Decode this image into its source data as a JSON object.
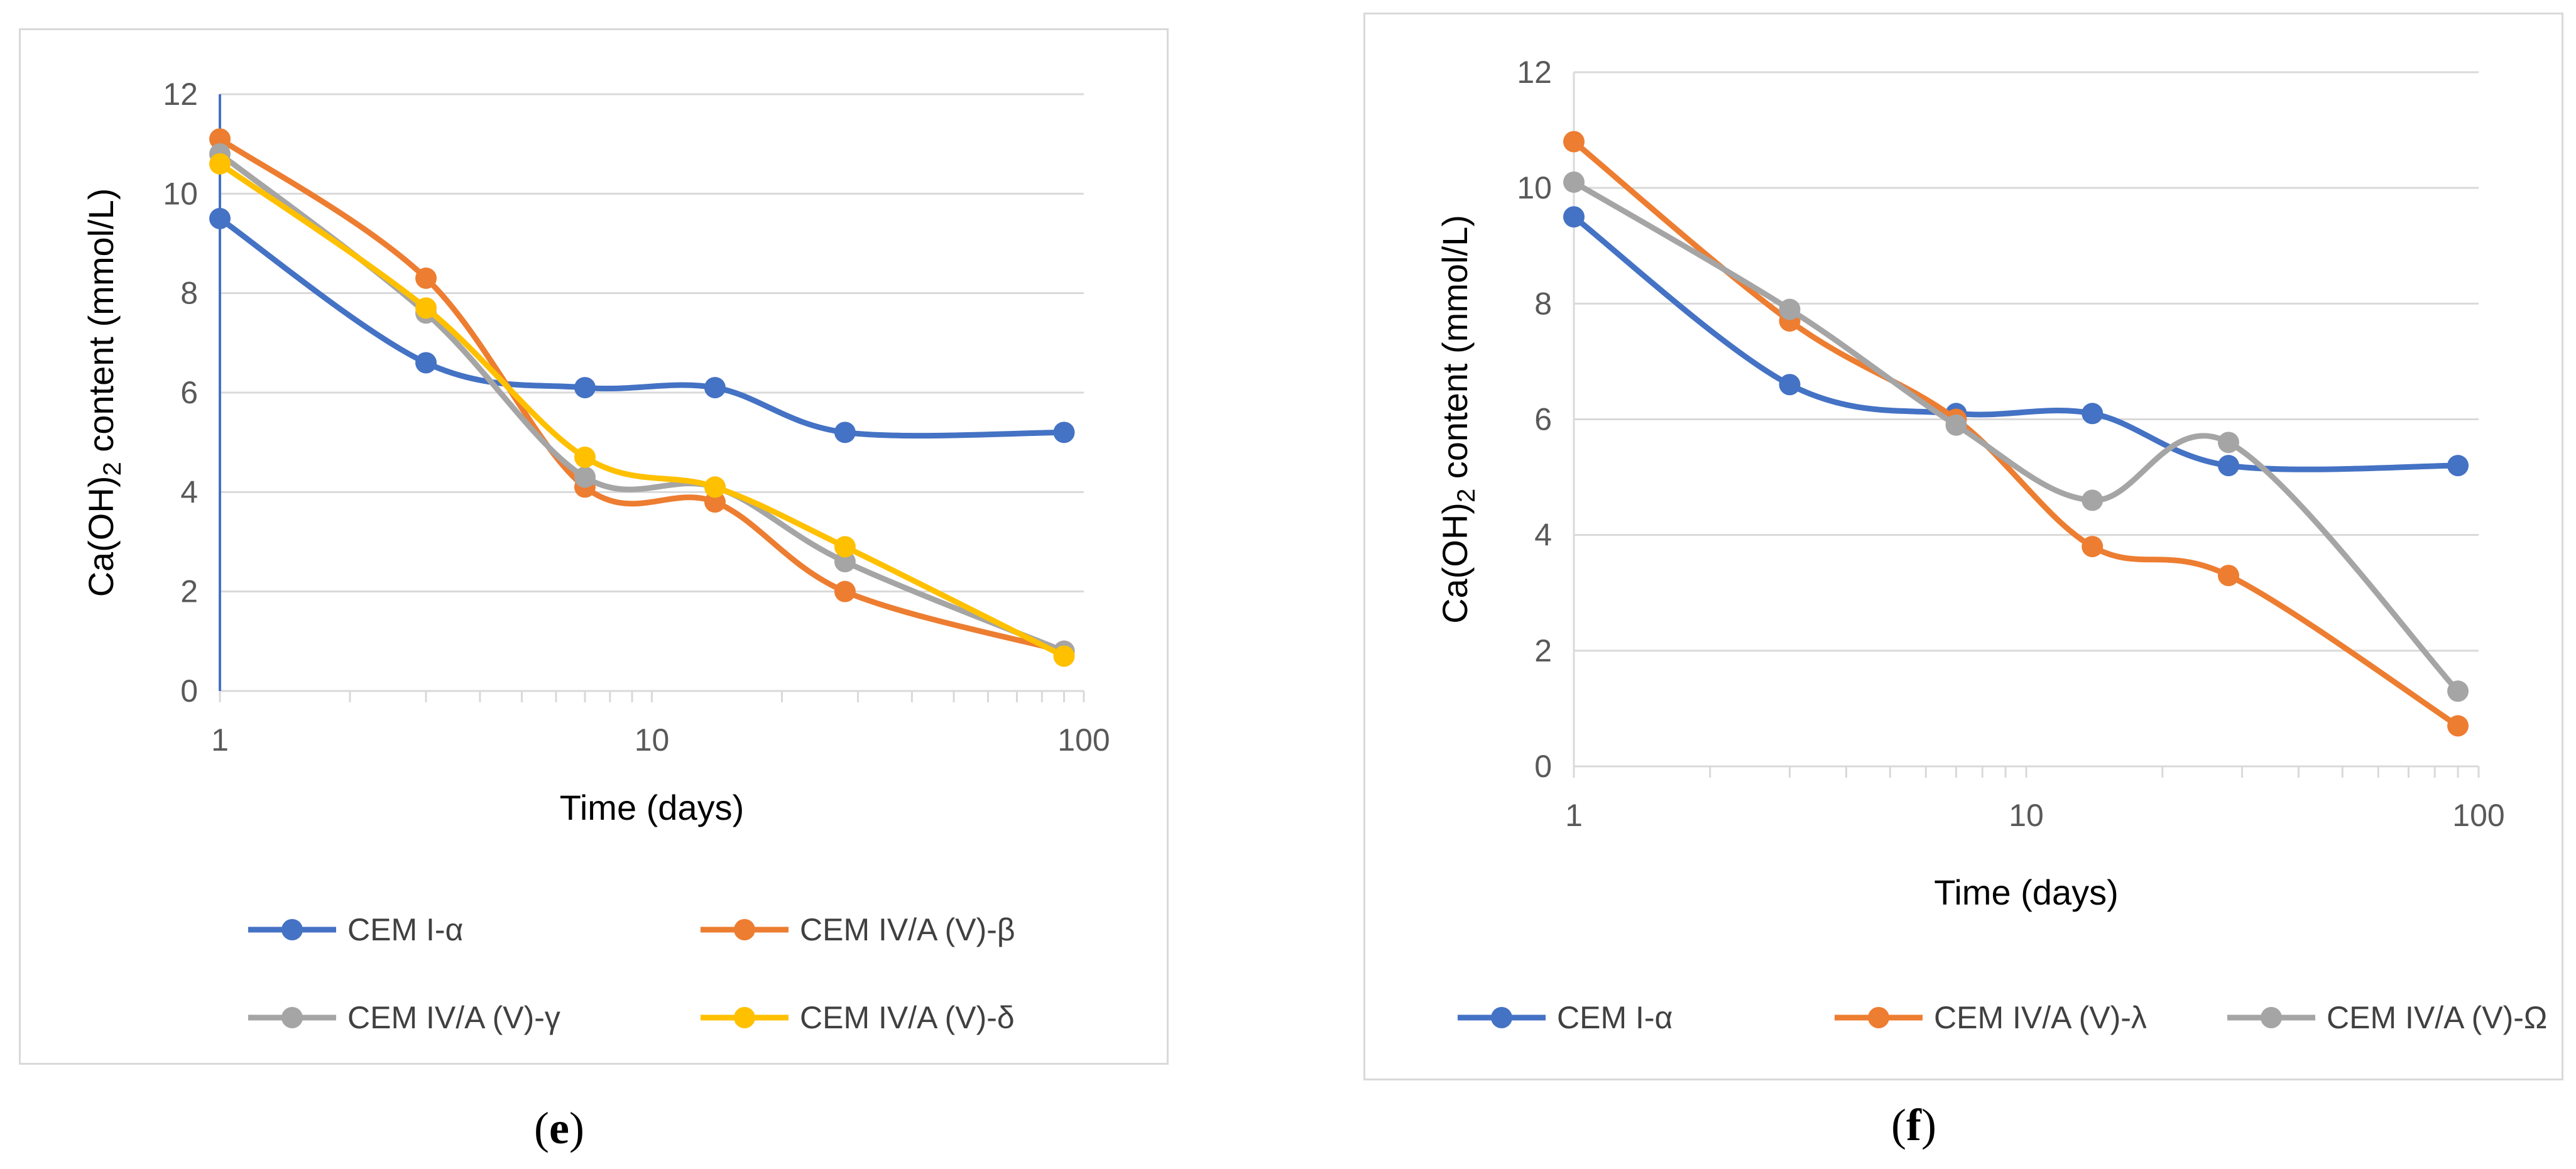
{
  "chart_data": [
    {
      "type": "line",
      "panel": "(e)",
      "xscale": "log",
      "xlim": [
        1,
        100
      ],
      "ylim": [
        0,
        12
      ],
      "xticks": [
        "1",
        "10",
        "100"
      ],
      "yticks": [
        "0",
        "2",
        "4",
        "6",
        "8",
        "10",
        "12"
      ],
      "xlabel": "Time (days)",
      "ylabel": "Ca(OH)2 content (mmol/L)",
      "legend": "bottom",
      "series": [
        {
          "name": "CEM I-α",
          "color": "#4472C4",
          "x": [
            1,
            3,
            7,
            14,
            28,
            90
          ],
          "y": [
            9.5,
            6.6,
            6.1,
            6.1,
            5.2,
            5.2
          ]
        },
        {
          "name": "CEM IV/A (V)-β",
          "color": "#ED7D31",
          "x": [
            1,
            3,
            7,
            14,
            28,
            90
          ],
          "y": [
            11.1,
            8.3,
            4.1,
            3.8,
            2.0,
            0.8
          ]
        },
        {
          "name": "CEM IV/A (V)-γ",
          "color": "#A5A5A5",
          "x": [
            1,
            3,
            7,
            14,
            28,
            90
          ],
          "y": [
            10.8,
            7.6,
            4.3,
            4.1,
            2.6,
            0.8
          ]
        },
        {
          "name": "CEM IV/A (V)-δ",
          "color": "#FFC000",
          "x": [
            1,
            3,
            7,
            14,
            28,
            90
          ],
          "y": [
            10.6,
            7.7,
            4.7,
            4.1,
            2.9,
            0.7
          ]
        }
      ]
    },
    {
      "type": "line",
      "panel": "(f)",
      "xscale": "log",
      "xlim": [
        1,
        100
      ],
      "ylim": [
        0,
        12
      ],
      "xticks": [
        "1",
        "10",
        "100"
      ],
      "yticks": [
        "0",
        "2",
        "4",
        "6",
        "8",
        "10",
        "12"
      ],
      "xlabel": "Time (days)",
      "ylabel": "Ca(OH)2 content (mmol/L)",
      "legend": "bottom",
      "series": [
        {
          "name": "CEM I-α",
          "color": "#4472C4",
          "x": [
            1,
            3,
            7,
            14,
            28,
            90
          ],
          "y": [
            9.5,
            6.6,
            6.1,
            6.1,
            5.2,
            5.2
          ]
        },
        {
          "name": "CEM IV/A (V)-λ",
          "color": "#ED7D31",
          "x": [
            1,
            3,
            7,
            14,
            28,
            90
          ],
          "y": [
            10.8,
            7.7,
            6.0,
            3.8,
            3.3,
            0.7
          ]
        },
        {
          "name": "CEM IV/A (V)-Ω",
          "color": "#A5A5A5",
          "x": [
            1,
            3,
            7,
            14,
            28,
            90
          ],
          "y": [
            10.1,
            7.9,
            5.9,
            4.6,
            5.6,
            1.3
          ]
        }
      ]
    }
  ],
  "labels": {
    "panel_e": "e",
    "panel_f": "f"
  }
}
